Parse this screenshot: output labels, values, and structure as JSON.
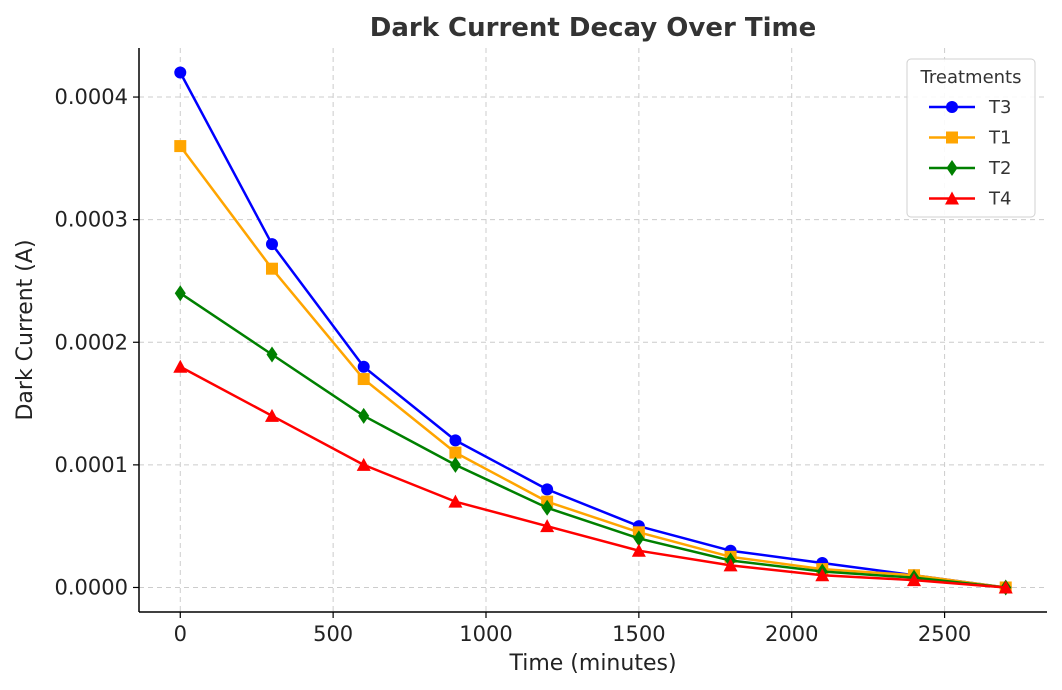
{
  "chart_data": {
    "type": "line",
    "title": "Dark Current Decay Over Time",
    "xlabel": "Time (minutes)",
    "ylabel": "Dark Current (A)",
    "xlim": [
      -135,
      2835
    ],
    "ylim": [
      -2e-05,
      0.00044
    ],
    "xticks": [
      0,
      500,
      1000,
      1500,
      2000,
      2500
    ],
    "xtick_labels": [
      "0",
      "500",
      "1000",
      "1500",
      "2000",
      "2500"
    ],
    "yticks": [
      0,
      0.0001,
      0.0002,
      0.0003,
      0.0004
    ],
    "ytick_labels": [
      "0.0000",
      "0.0001",
      "0.0002",
      "0.0003",
      "0.0004"
    ],
    "grid": true,
    "legend": {
      "title": "Treatments",
      "placement": "top-right"
    },
    "x": [
      0,
      300,
      600,
      900,
      1200,
      1500,
      1800,
      2100,
      2400,
      2700
    ],
    "series": [
      {
        "name": "T3",
        "color": "#0000ff",
        "marker": "circle",
        "values": [
          0.00042,
          0.00028,
          0.00018,
          0.00012,
          8e-05,
          5e-05,
          3e-05,
          2e-05,
          1e-05,
          0.0
        ]
      },
      {
        "name": "T1",
        "color": "#ffa500",
        "marker": "square",
        "values": [
          0.00036,
          0.00026,
          0.00017,
          0.00011,
          7e-05,
          4.5e-05,
          2.5e-05,
          1.5e-05,
          1e-05,
          0.0
        ]
      },
      {
        "name": "T2",
        "color": "#008000",
        "marker": "diamond",
        "values": [
          0.00024,
          0.00019,
          0.00014,
          0.0001,
          6.5e-05,
          4e-05,
          2.2e-05,
          1.3e-05,
          8e-06,
          0.0
        ]
      },
      {
        "name": "T4",
        "color": "#ff0000",
        "marker": "triangle",
        "values": [
          0.00018,
          0.00014,
          0.0001,
          7e-05,
          5e-05,
          3e-05,
          1.8e-05,
          1e-05,
          6e-06,
          0.0
        ]
      }
    ]
  }
}
